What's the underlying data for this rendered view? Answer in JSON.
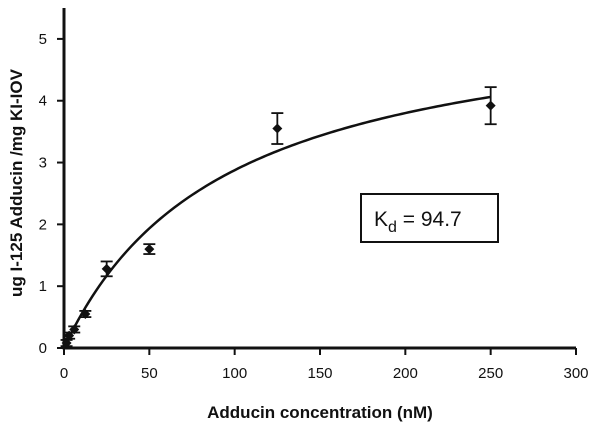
{
  "chart_data": {
    "type": "scatter",
    "title": "",
    "xlabel": "Adducin concentration (nM)",
    "ylabel": "ug I-125 Adducin /mg KI-IOV",
    "xlim": [
      0,
      300
    ],
    "ylim": [
      0,
      5.5
    ],
    "x_ticks": [
      0,
      50,
      100,
      150,
      200,
      250,
      300
    ],
    "y_ticks": [
      0,
      1,
      2,
      3,
      4,
      5
    ],
    "grid": false,
    "legend": "none",
    "series": [
      {
        "marker": "diamond",
        "color": "#111111",
        "x": [
          1.5,
          3,
          6,
          12.5,
          25,
          50,
          125,
          250
        ],
        "y": [
          0.08,
          0.2,
          0.3,
          0.55,
          1.28,
          1.6,
          3.55,
          3.92
        ],
        "error": [
          0.05,
          0.05,
          0.05,
          0.05,
          0.12,
          0.08,
          0.25,
          0.3
        ]
      }
    ],
    "fit": {
      "model": "one-site saturation binding",
      "bmax": 5.6,
      "kd": 94.7,
      "x_range": [
        0,
        250
      ]
    },
    "annotation": {
      "symbol": "K",
      "subscript": "d",
      "text": " = 94.7",
      "position": "right-middle"
    }
  }
}
